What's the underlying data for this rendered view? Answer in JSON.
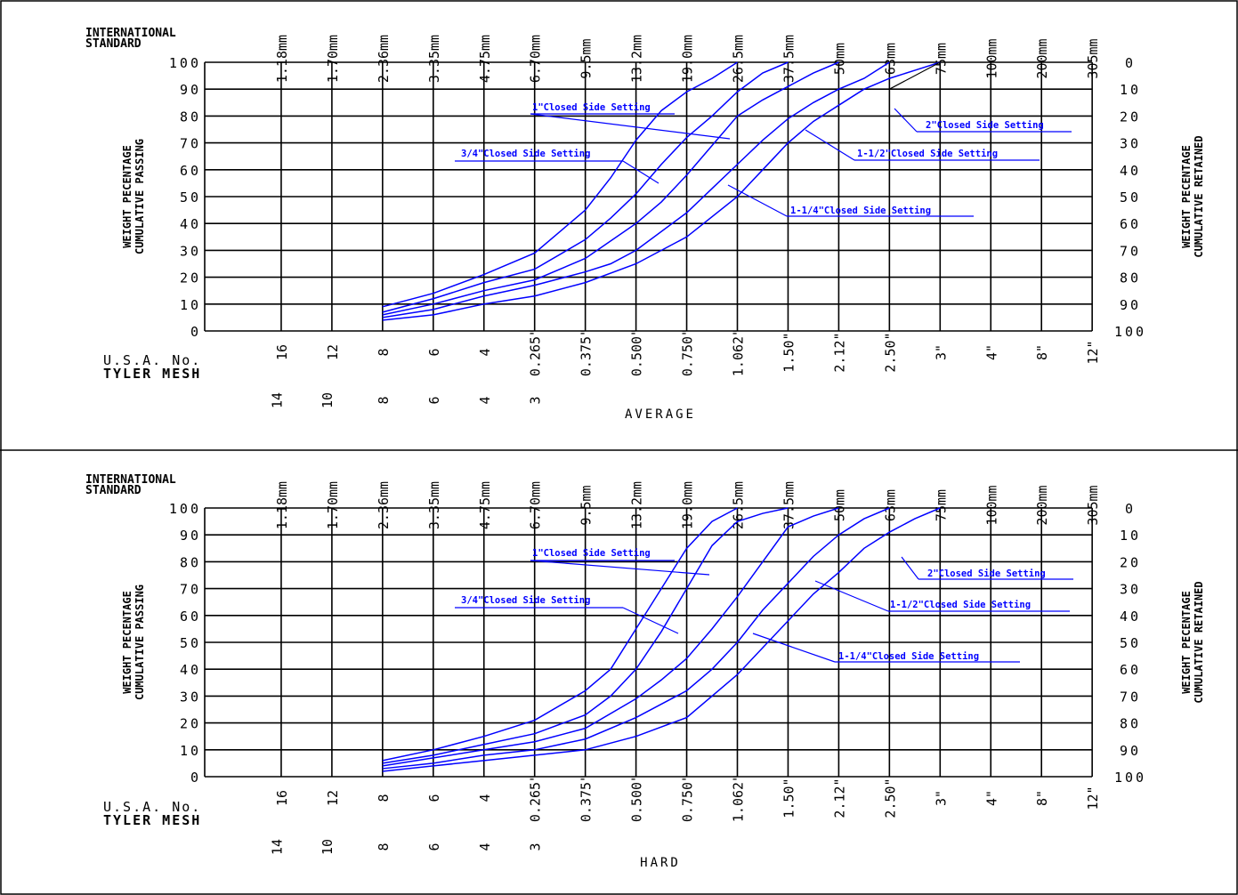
{
  "chart_data": [
    {
      "type": "line",
      "title": "AVERAGE",
      "international_standard_label": "INTERNATIONAL STANDARD",
      "international_standard_ticks": [
        "1.18mm",
        "1.70mm",
        "2.36mm",
        "3.35mm",
        "4.75mm",
        "6.70mm",
        "9.5mm",
        "13.2mm",
        "19.0mm",
        "26.5mm",
        "37.5mm",
        "50mm",
        "63mm",
        "75mm",
        "100mm",
        "200mm",
        "305mm"
      ],
      "usa_label": "U.S.A. No.",
      "tyler_label": "TYLER MESH",
      "usa_ticks": [
        "16",
        "12",
        "8",
        "6",
        "4",
        "0.265\"",
        "0.375\"",
        "0.500\"",
        "0.750\"",
        "1.062\"",
        "1.50\"",
        "2.12\"",
        "2.50\"",
        "3\"",
        "4\"",
        "8\"",
        "12\""
      ],
      "tyler_ticks": [
        "14",
        "10",
        "8",
        "6",
        "4",
        "3"
      ],
      "ylabel": "WEIGHT PECENTAGE CUMULATIVE PASSING",
      "y2label": "WEIGHT PECENTAGE CUMULATIVE RETAINED",
      "ylim": [
        0,
        100
      ],
      "y_ticks": [
        "0",
        "10",
        "20",
        "30",
        "40",
        "50",
        "60",
        "70",
        "80",
        "90",
        "100"
      ],
      "y2_ticks": [
        "100",
        "90",
        "80",
        "70",
        "60",
        "50",
        "40",
        "30",
        "20",
        "10",
        "0"
      ],
      "x_categories": [
        "1.18mm",
        "1.70mm",
        "2.36mm",
        "3.35mm",
        "4.75mm",
        "6.70mm",
        "9.5mm",
        "13.2mm",
        "19.0mm",
        "26.5mm",
        "37.5mm",
        "50mm",
        "63mm",
        "75mm",
        "100mm",
        "200mm",
        "305mm"
      ],
      "series": [
        {
          "name": "3/4\"Closed Side Setting",
          "x": [
            3,
            4,
            5,
            6,
            6.5,
            7,
            7.5,
            8,
            8.5,
            9,
            9.5,
            10
          ],
          "y": [
            9,
            14,
            21,
            29,
            37,
            45,
            57,
            71,
            82,
            89,
            94,
            100
          ]
        },
        {
          "name": "1\"Closed Side Setting",
          "x": [
            3,
            4,
            5,
            6,
            7,
            7.5,
            8,
            8.5,
            9,
            9.5,
            10,
            10.5,
            11
          ],
          "y": [
            7,
            12,
            18,
            23,
            34,
            42,
            51,
            62,
            72,
            80,
            89,
            96,
            100
          ]
        },
        {
          "name": "1-1/4\"Closed Side Setting",
          "x": [
            3,
            4,
            5,
            6,
            7,
            8,
            8.5,
            9,
            9.5,
            10,
            10.5,
            11,
            11.5,
            12
          ],
          "y": [
            6,
            10,
            15,
            19,
            27,
            40,
            48,
            58,
            69,
            80,
            86,
            91,
            96,
            100
          ]
        },
        {
          "name": "1-1/2\"Closed Side Setting",
          "x": [
            3,
            4,
            5,
            6,
            7,
            7.5,
            8,
            9,
            9.5,
            10,
            10.5,
            11,
            11.5,
            12,
            12.5,
            13
          ],
          "y": [
            5,
            8,
            13,
            17,
            22,
            25,
            30,
            44,
            53,
            62,
            71,
            79,
            85,
            90,
            94,
            100
          ]
        },
        {
          "name": "2\"Closed Side Setting",
          "x": [
            3,
            4,
            5,
            6,
            7,
            8,
            9,
            10,
            10.5,
            11,
            11.5,
            12,
            12.5,
            13,
            13.5,
            14
          ],
          "y": [
            4,
            6,
            10,
            13,
            18,
            25,
            35,
            50,
            60,
            70,
            78,
            84,
            90,
            94,
            97,
            100
          ]
        }
      ],
      "extra_line": {
        "x": [
          13,
          14
        ],
        "y": [
          90,
          100
        ]
      },
      "annotations": [
        "1\"Closed Side Setting",
        "3/4\"Closed Side Setting",
        "2\"Closed Side Setting",
        "1-1/2\"Closed Side Setting",
        "1-1/4\"Closed Side Setting"
      ],
      "grid": true,
      "line_color": "#0000ff"
    },
    {
      "type": "line",
      "title": "HARD",
      "international_standard_label": "INTERNATIONAL STANDARD",
      "international_standard_ticks": [
        "1.18mm",
        "1.70mm",
        "2.36mm",
        "3.35mm",
        "4.75mm",
        "6.70mm",
        "9.5mm",
        "13.2mm",
        "19.0mm",
        "26.5mm",
        "37.5mm",
        "50mm",
        "63mm",
        "75mm",
        "100mm",
        "200mm",
        "305mm"
      ],
      "usa_label": "U.S.A. No.",
      "tyler_label": "TYLER MESH",
      "usa_ticks": [
        "16",
        "12",
        "8",
        "6",
        "4",
        "0.265\"",
        "0.375\"",
        "0.500\"",
        "0.750\"",
        "1.062\"",
        "1.50\"",
        "2.12\"",
        "2.50\"",
        "3\"",
        "4\"",
        "8\"",
        "12\""
      ],
      "tyler_ticks": [
        "14",
        "10",
        "8",
        "6",
        "4",
        "3"
      ],
      "ylabel": "WEIGHT PECENTAGE CUMULATIVE PASSING",
      "y2label": "WEIGHT PECENTAGE CUMULATIVE RETAINED",
      "ylim": [
        0,
        100
      ],
      "y_ticks": [
        "0",
        "10",
        "20",
        "30",
        "40",
        "50",
        "60",
        "70",
        "80",
        "90",
        "100"
      ],
      "y2_ticks": [
        "100",
        "90",
        "80",
        "70",
        "60",
        "50",
        "40",
        "30",
        "20",
        "10",
        "0"
      ],
      "x_categories": [
        "1.18mm",
        "1.70mm",
        "2.36mm",
        "3.35mm",
        "4.75mm",
        "6.70mm",
        "9.5mm",
        "13.2mm",
        "19.0mm",
        "26.5mm",
        "37.5mm",
        "50mm",
        "63mm",
        "75mm",
        "100mm",
        "200mm",
        "305mm"
      ],
      "series": [
        {
          "name": "3/4\"Closed Side Setting",
          "x": [
            3,
            4,
            5,
            6,
            7,
            7.5,
            8,
            8.5,
            9,
            9.5,
            10
          ],
          "y": [
            6,
            10,
            15,
            21,
            32,
            40,
            55,
            70,
            85,
            95,
            100
          ]
        },
        {
          "name": "1\"Closed Side Setting",
          "x": [
            3,
            4,
            5,
            6,
            7,
            7.5,
            8,
            8.5,
            9,
            9.5,
            10,
            10.5,
            11
          ],
          "y": [
            5,
            8,
            12,
            16,
            23,
            30,
            40,
            54,
            70,
            86,
            95,
            98,
            100
          ]
        },
        {
          "name": "1-1/4\"Closed Side Setting",
          "x": [
            3,
            4,
            5,
            6,
            7,
            8,
            8.5,
            9,
            9.5,
            10,
            10.5,
            11,
            11.5,
            12
          ],
          "y": [
            4,
            7,
            10,
            13,
            18,
            29,
            36,
            44,
            55,
            67,
            80,
            93,
            97,
            100
          ]
        },
        {
          "name": "1-1/2\"Closed Side Setting",
          "x": [
            3,
            4,
            5,
            6,
            7,
            8,
            9,
            9.5,
            10,
            10.5,
            11,
            11.5,
            12,
            12.5,
            13
          ],
          "y": [
            3,
            5,
            8,
            10,
            14,
            22,
            32,
            40,
            50,
            62,
            72,
            82,
            90,
            96,
            100
          ]
        },
        {
          "name": "2\"Closed Side Setting",
          "x": [
            3,
            4,
            5,
            6,
            7,
            8,
            9,
            10,
            11,
            11.5,
            12,
            12.5,
            13,
            13.5,
            14
          ],
          "y": [
            2,
            4,
            6,
            8,
            10,
            15,
            22,
            38,
            58,
            68,
            76,
            85,
            91,
            96,
            100
          ]
        }
      ],
      "annotations": [
        "1\"Closed Side Setting",
        "3/4\"Closed Side Setting",
        "2\"Closed Side Setting",
        "1-1/2\"Closed Side Setting",
        "1-1/4\"Closed Side Setting"
      ],
      "grid": true,
      "line_color": "#0000ff"
    }
  ]
}
